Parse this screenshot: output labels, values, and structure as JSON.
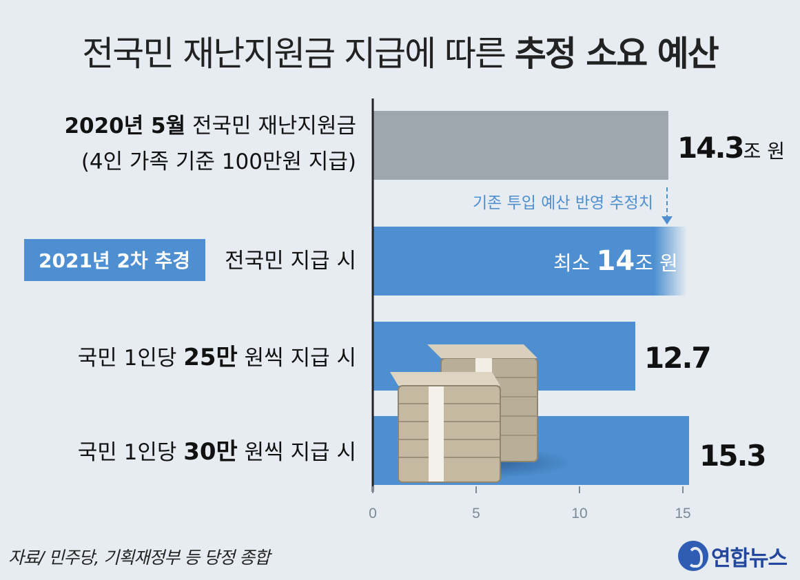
{
  "title": {
    "light": "전국민 재난지원금 지급에 따른 ",
    "bold": "추정 소요 예산"
  },
  "rows": [
    {
      "line1_bold": "2020년 5월",
      "line1_rest": " 전국민 재난지원금",
      "line2": "(4인 가족 기준 100만원 지급)"
    },
    {
      "tag": "2021년 2차 추경",
      "rest": "전국민 지급 시"
    },
    {
      "pre": "국민 1인당 ",
      "bold": "25만",
      "post": " 원씩 지급 시"
    },
    {
      "pre": "국민 1인당 ",
      "bold": "30만",
      "post": " 원씩 지급 시"
    }
  ],
  "value_labels": {
    "v2020": "14.3",
    "v2020_unit": "조 원",
    "v2021_prefix": "최소 ",
    "v2021": "14",
    "v2021_unit": "조 원",
    "v25": "12.7",
    "v30": "15.3"
  },
  "annotation": "기존 투입 예산 반영 추정치",
  "source": "자료/ 민주당, 기획재정부 등 당정 종합",
  "logo_text": "연합뉴스",
  "colors": {
    "gray_bar": "#9ea7ad",
    "blue_bar": "#4d8fd0",
    "tag_bg": "#4d8fd0",
    "annotation": "#4f8fce"
  },
  "chart_data": {
    "type": "bar",
    "orientation": "horizontal",
    "categories": [
      "2020년 5월 전국민 재난지원금 (4인 가족 기준 100만원 지급)",
      "2021년 2차 추경 전국민 지급 시",
      "국민 1인당 25만 원씩 지급 시",
      "국민 1인당 30만 원씩 지급 시"
    ],
    "values": [
      14.3,
      14,
      12.7,
      15.3
    ],
    "unit": "조 원",
    "xticks": [
      0,
      5,
      10,
      15
    ],
    "xlim": [
      0,
      15.5
    ],
    "grid": false
  }
}
